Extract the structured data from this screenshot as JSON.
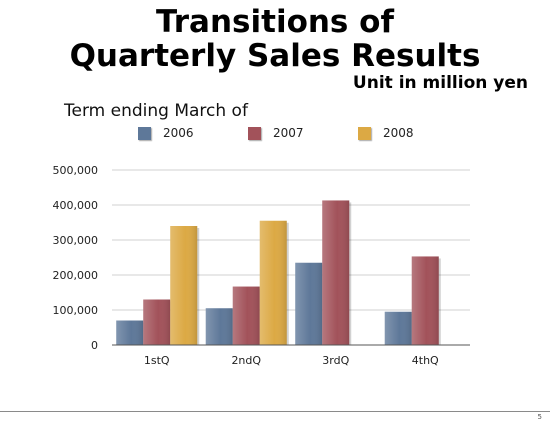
{
  "slide": {
    "title_line1": "Transitions of",
    "title_line2": "Quarterly Sales Results",
    "unit_note": "Unit in million yen",
    "page_number": "5"
  },
  "chart_data": {
    "type": "bar",
    "title": "Quarterly Sales Results",
    "legend_title": "Term ending March of",
    "legend_position": "top",
    "categories": [
      "1stQ",
      "2ndQ",
      "3rdQ",
      "4thQ"
    ],
    "series": [
      {
        "name": "2006",
        "color": "#5e7899",
        "values": [
          70000,
          105000,
          235000,
          95000
        ]
      },
      {
        "name": "2007",
        "color": "#a2525a",
        "values": [
          130000,
          167000,
          413000,
          253000
        ]
      },
      {
        "name": "2008",
        "color": "#dca944",
        "values": [
          340000,
          355000,
          null,
          null
        ]
      }
    ],
    "ylim": [
      0,
      500000
    ],
    "yticks": [
      0,
      100000,
      200000,
      300000,
      400000,
      500000
    ],
    "ytick_labels": [
      "0",
      "100,000",
      "200,000",
      "300,000",
      "400,000",
      "500,000"
    ],
    "grid": true
  }
}
